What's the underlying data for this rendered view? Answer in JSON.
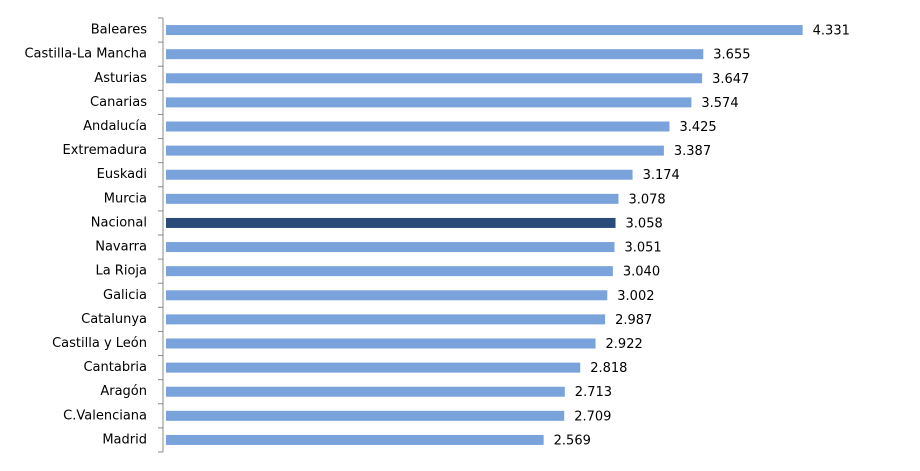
{
  "chart_data": {
    "type": "bar",
    "orientation": "horizontal",
    "categories": [
      "Baleares",
      "Castilla-La Mancha",
      "Asturias",
      "Canarias",
      "Andalucía",
      "Extremadura",
      "Euskadi",
      "Murcia",
      "Nacional",
      "Navarra",
      "La Rioja",
      "Galicia",
      "Catalunya",
      "Castilla y León",
      "Cantabria",
      "Aragón",
      "C.Valenciana",
      "Madrid"
    ],
    "values": [
      4331,
      3655,
      3647,
      3574,
      3425,
      3387,
      3174,
      3078,
      3058,
      3051,
      3040,
      3002,
      2987,
      2922,
      2818,
      2713,
      2709,
      2569
    ],
    "value_labels": [
      "4.331",
      "3.655",
      "3.647",
      "3.574",
      "3.425",
      "3.387",
      "3.174",
      "3.078",
      "3.058",
      "3.051",
      "3.040",
      "3.002",
      "2.987",
      "2.922",
      "2.818",
      "2.713",
      "2.709",
      "2.569"
    ],
    "colors": [
      "#7aa3dc",
      "#7aa3dc",
      "#7aa3dc",
      "#7aa3dc",
      "#7aa3dc",
      "#7aa3dc",
      "#7aa3dc",
      "#7aa3dc",
      "#2a4a7a",
      "#7aa3dc",
      "#7aa3dc",
      "#7aa3dc",
      "#7aa3dc",
      "#7aa3dc",
      "#7aa3dc",
      "#7aa3dc",
      "#7aa3dc",
      "#7aa3dc"
    ]
  }
}
